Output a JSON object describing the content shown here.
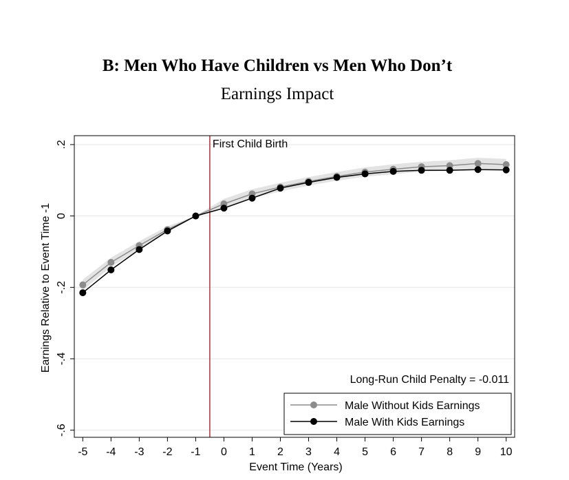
{
  "chart_data": {
    "type": "line",
    "title": "B: Men Who Have Children vs Men Who Don’t",
    "subtitle": "Earnings Impact",
    "xlabel": "Event Time (Years)",
    "ylabel": "Earnings Relative to Event Time -1",
    "xlim": [
      -5,
      10
    ],
    "ylim": [
      -0.6,
      0.2
    ],
    "x_ticks": [
      -5,
      -4,
      -3,
      -2,
      -1,
      0,
      1,
      2,
      3,
      4,
      5,
      6,
      7,
      8,
      9,
      10
    ],
    "x_tick_labels": [
      "-5",
      "-4",
      "-3",
      "-2",
      "-1",
      "0",
      "1",
      "2",
      "3",
      "4",
      "5",
      "6",
      "7",
      "8",
      "9",
      "10"
    ],
    "y_ticks": [
      0.2,
      0,
      -0.2,
      -0.4,
      -0.6
    ],
    "y_tick_labels": [
      ".2",
      "0",
      "-.2",
      "-.4",
      "-.6"
    ],
    "grid": true,
    "x": [
      -5,
      -4,
      -3,
      -2,
      -1,
      0,
      1,
      2,
      3,
      4,
      5,
      6,
      7,
      8,
      9,
      10
    ],
    "series": [
      {
        "name": "Male Without Kids Earnings",
        "color": "#8c8c8c",
        "values": [
          -0.193,
          -0.13,
          -0.083,
          -0.038,
          0.0,
          0.034,
          0.062,
          0.081,
          0.097,
          0.111,
          0.123,
          0.131,
          0.138,
          0.141,
          0.147,
          0.144
        ],
        "ci_lower": [
          -0.208,
          -0.143,
          -0.095,
          -0.047,
          0.0,
          0.02,
          0.049,
          0.069,
          0.085,
          0.099,
          0.11,
          0.117,
          0.124,
          0.126,
          0.131,
          0.128
        ],
        "ci_upper": [
          -0.178,
          -0.117,
          -0.071,
          -0.029,
          0.0,
          0.048,
          0.075,
          0.093,
          0.109,
          0.123,
          0.136,
          0.145,
          0.152,
          0.156,
          0.163,
          0.16
        ]
      },
      {
        "name": "Male With Kids Earnings",
        "color": "#000000",
        "values": [
          -0.215,
          -0.151,
          -0.094,
          -0.042,
          0.0,
          0.022,
          0.05,
          0.078,
          0.094,
          0.108,
          0.118,
          0.125,
          0.128,
          0.128,
          0.13,
          0.129
        ]
      }
    ],
    "vertical_line": {
      "x": -0.5,
      "label": "First Child Birth",
      "color": "#b03038"
    },
    "annotation": "Long-Run Child Penalty = -0.011",
    "legend_position": "bottom-right"
  }
}
